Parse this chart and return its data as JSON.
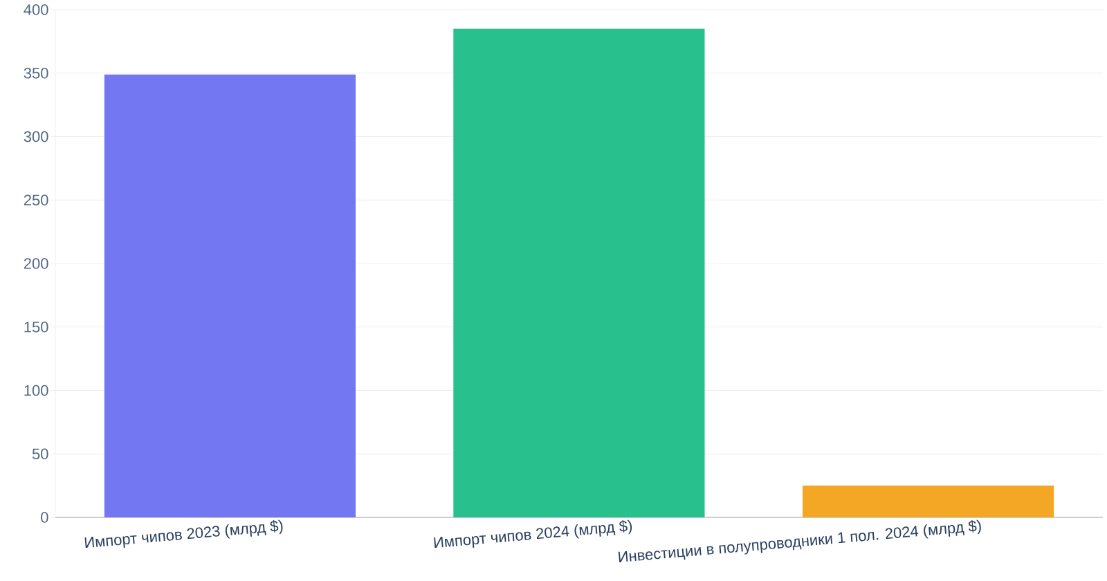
{
  "chart_data": {
    "type": "bar",
    "categories": [
      "Импорт чипов 2023 (млрд $)",
      "Импорт чипов 2024 (млрд $)",
      "Инвестиции в полупроводники 1 пол. 2024 (млрд $)"
    ],
    "values": [
      349,
      385,
      25
    ],
    "colors": [
      "#7477f2",
      "#28c18d",
      "#f4a724"
    ],
    "ylim": [
      0,
      400
    ],
    "yticks": [
      0,
      50,
      100,
      150,
      200,
      250,
      300,
      350,
      400
    ],
    "grid": "y"
  }
}
